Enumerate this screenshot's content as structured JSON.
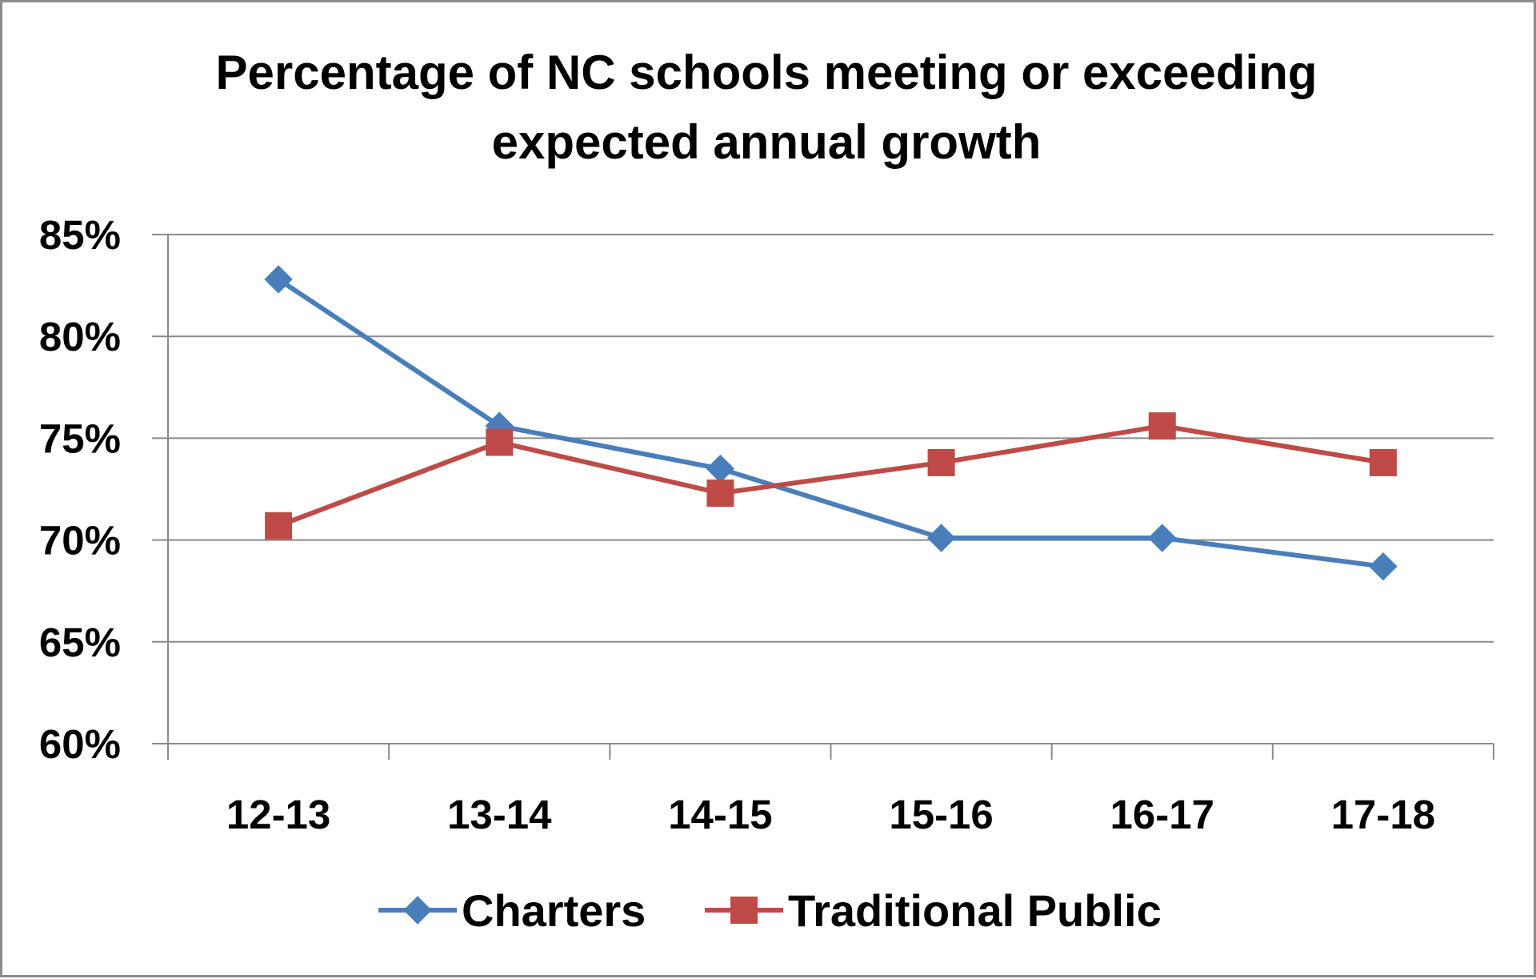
{
  "chart_data": {
    "type": "line",
    "title_lines": [
      "Percentage of NC schools meeting or exceeding",
      "expected annual growth"
    ],
    "categories": [
      "12-13",
      "13-14",
      "14-15",
      "15-16",
      "16-17",
      "17-18"
    ],
    "series": [
      {
        "name": "Charters",
        "values": [
          82.8,
          75.6,
          73.5,
          70.1,
          70.1,
          68.7
        ],
        "color": "#4a7ebb",
        "marker": "diamond"
      },
      {
        "name": "Traditional Public",
        "values": [
          70.7,
          74.8,
          72.3,
          73.8,
          75.6,
          73.8
        ],
        "color": "#be4b48",
        "marker": "square"
      }
    ],
    "yticks": [
      "60%",
      "65%",
      "70%",
      "75%",
      "80%",
      "85%"
    ],
    "ylim": [
      60,
      85
    ],
    "grid": true,
    "legend": "bottom"
  }
}
